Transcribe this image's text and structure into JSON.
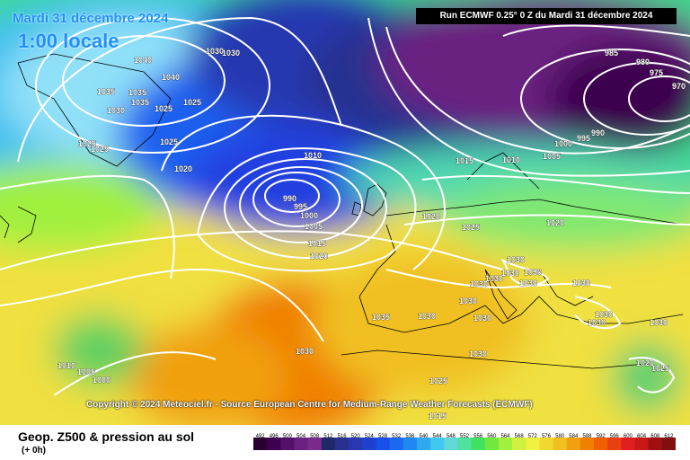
{
  "overlay": {
    "date": "Mardi 31 décembre 2024",
    "local_time": "1:00 locale",
    "run_info": "Run ECMWF 0.25° 0 Z du Mardi 31 décembre 2024",
    "copyright": "Copyright © 2024 Meteociel.fr - Source European Centre for Medium-Range Weather Forecasts (ECMWF)"
  },
  "footer": {
    "title": "Geop. Z500 & pression au sol",
    "subtitle": "(+ 0h)"
  },
  "scale": {
    "labels": [
      "492",
      "496",
      "500",
      "504",
      "508",
      "512",
      "516",
      "520",
      "524",
      "528",
      "532",
      "536",
      "540",
      "544",
      "548",
      "552",
      "556",
      "560",
      "564",
      "568",
      "572",
      "576",
      "580",
      "584",
      "588",
      "592",
      "596",
      "600",
      "604",
      "608",
      "612"
    ],
    "colors": [
      "#2a0030",
      "#3d0050",
      "#55106a",
      "#6a2080",
      "#7a2a8a",
      "#20286a",
      "#283090",
      "#2838b0",
      "#2040d0",
      "#1850e8",
      "#1c68f0",
      "#2088f0",
      "#30a8f0",
      "#40c8f0",
      "#60d8d8",
      "#50e0a0",
      "#40e060",
      "#70e840",
      "#a0f040",
      "#d0f040",
      "#f0f040",
      "#f0d830",
      "#f0c020",
      "#f0a010",
      "#f08000",
      "#f06000",
      "#e84010",
      "#e02020",
      "#c81818",
      "#a01010",
      "#801010"
    ]
  },
  "isobar_labels": [
    {
      "text": "1030"
    },
    {
      "text": "1040"
    },
    {
      "text": "1035"
    },
    {
      "text": "1040"
    },
    {
      "text": "1030"
    },
    {
      "text": "1035"
    },
    {
      "text": "1035"
    },
    {
      "text": "1025"
    },
    {
      "text": "1025"
    },
    {
      "text": "1030"
    },
    {
      "text": "1025"
    },
    {
      "text": "1025"
    },
    {
      "text": "1025"
    },
    {
      "text": "1020"
    },
    {
      "text": "1010"
    },
    {
      "text": "990"
    },
    {
      "text": "995"
    },
    {
      "text": "1000"
    },
    {
      "text": "1005"
    },
    {
      "text": "1015"
    },
    {
      "text": "1020"
    },
    {
      "text": "1015"
    },
    {
      "text": "1010"
    },
    {
      "text": "1005"
    },
    {
      "text": "1000"
    },
    {
      "text": "995"
    },
    {
      "text": "990"
    },
    {
      "text": "985"
    },
    {
      "text": "980"
    },
    {
      "text": "975"
    },
    {
      "text": "970"
    },
    {
      "text": "1020"
    },
    {
      "text": "1025"
    },
    {
      "text": "1020"
    },
    {
      "text": "1030"
    },
    {
      "text": "1030"
    },
    {
      "text": "1030"
    },
    {
      "text": "1030"
    },
    {
      "text": "1030"
    },
    {
      "text": "1030"
    },
    {
      "text": "1030"
    },
    {
      "text": "1030"
    },
    {
      "text": "1030"
    },
    {
      "text": "1030"
    },
    {
      "text": "1035"
    },
    {
      "text": "1030"
    },
    {
      "text": "1030"
    },
    {
      "text": "1030"
    },
    {
      "text": "1030"
    },
    {
      "text": "1030"
    },
    {
      "text": "1025"
    },
    {
      "text": "1020"
    },
    {
      "text": "1025"
    },
    {
      "text": "1015"
    },
    {
      "text": "1010"
    },
    {
      "text": "1005"
    },
    {
      "text": "1000"
    }
  ]
}
